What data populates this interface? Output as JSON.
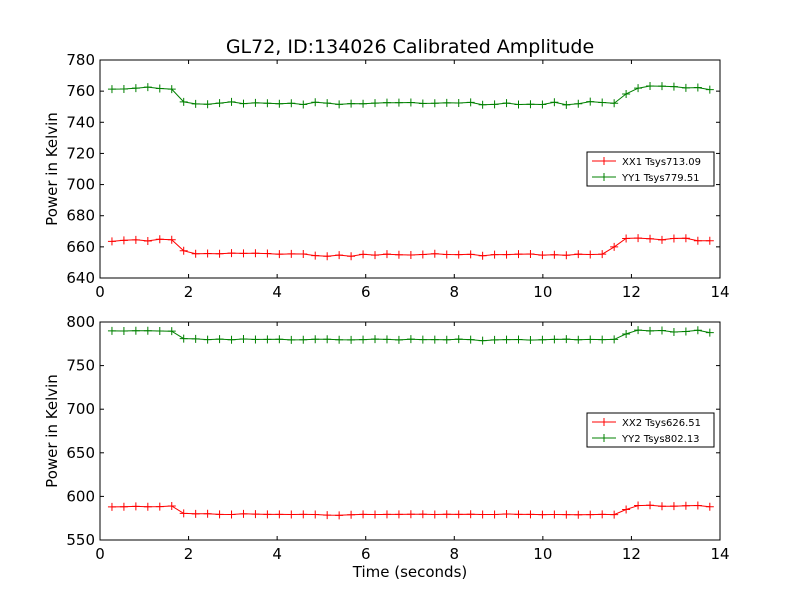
{
  "chart_data": [
    {
      "type": "line",
      "title": "GL72, ID:134026 Calibrated Amplitude",
      "xlabel": "",
      "ylabel": "Power in Kelvin",
      "xlim": [
        0,
        14
      ],
      "ylim": [
        640,
        780
      ],
      "xticks": [
        0,
        2,
        4,
        6,
        8,
        10,
        12,
        14
      ],
      "yticks": [
        640,
        660,
        680,
        700,
        720,
        740,
        760,
        780
      ],
      "grid": false,
      "legend_position": "center-right",
      "x": [
        0.27,
        0.54,
        0.81,
        1.08,
        1.35,
        1.62,
        1.89,
        2.16,
        2.43,
        2.7,
        2.97,
        3.24,
        3.51,
        3.78,
        4.05,
        4.32,
        4.59,
        4.86,
        5.13,
        5.4,
        5.67,
        5.94,
        6.21,
        6.48,
        6.75,
        7.02,
        7.29,
        7.56,
        7.83,
        8.1,
        8.37,
        8.64,
        8.91,
        9.18,
        9.45,
        9.72,
        9.99,
        10.26,
        10.53,
        10.8,
        11.07,
        11.34,
        11.61,
        11.88,
        12.15,
        12.42,
        12.69,
        12.96,
        13.23,
        13.5,
        13.77
      ],
      "series": [
        {
          "name": "XX1 Tsys713.09",
          "color": "#ff0000",
          "values": [
            663.5,
            664.2,
            664.5,
            663.8,
            664.9,
            664.6,
            657.5,
            655.6,
            655.7,
            655.6,
            656.0,
            655.8,
            655.9,
            655.7,
            655.3,
            655.5,
            655.4,
            654.4,
            654.0,
            654.7,
            654.0,
            655.2,
            654.7,
            655.3,
            654.9,
            654.8,
            655.1,
            655.6,
            655.1,
            655.0,
            655.2,
            654.3,
            655.0,
            655.0,
            655.3,
            655.4,
            654.7,
            654.9,
            654.6,
            655.3,
            655.1,
            655.3,
            660.0,
            665.4,
            665.6,
            665.2,
            664.5,
            665.4,
            665.5,
            663.9,
            663.9
          ]
        },
        {
          "name": "YY1 Tsys779.51",
          "color": "#008000",
          "values": [
            761.3,
            761.4,
            761.9,
            762.6,
            761.7,
            761.3,
            753.1,
            751.8,
            751.6,
            752.3,
            753.1,
            752.0,
            752.5,
            752.2,
            751.9,
            752.2,
            751.4,
            752.9,
            752.3,
            751.5,
            752.0,
            751.9,
            752.3,
            752.6,
            752.6,
            752.7,
            752.1,
            752.2,
            752.5,
            752.4,
            752.8,
            751.3,
            751.5,
            752.3,
            751.4,
            751.6,
            751.4,
            752.9,
            751.2,
            751.9,
            753.3,
            752.7,
            752.2,
            758.2,
            761.9,
            763.3,
            763.2,
            762.9,
            762.1,
            762.3,
            761.0
          ]
        }
      ],
      "legend": [
        "XX1 Tsys713.09",
        "YY1 Tsys779.51"
      ]
    },
    {
      "type": "line",
      "title": "",
      "xlabel": "Time (seconds)",
      "ylabel": "Power in Kelvin",
      "xlim": [
        0,
        14
      ],
      "ylim": [
        550,
        800
      ],
      "xticks": [
        0,
        2,
        4,
        6,
        8,
        10,
        12,
        14
      ],
      "yticks": [
        550,
        600,
        650,
        700,
        750,
        800
      ],
      "grid": false,
      "legend_position": "center-right",
      "x": [
        0.27,
        0.54,
        0.81,
        1.08,
        1.35,
        1.62,
        1.89,
        2.16,
        2.43,
        2.7,
        2.97,
        3.24,
        3.51,
        3.78,
        4.05,
        4.32,
        4.59,
        4.86,
        5.13,
        5.4,
        5.67,
        5.94,
        6.21,
        6.48,
        6.75,
        7.02,
        7.29,
        7.56,
        7.83,
        8.1,
        8.37,
        8.64,
        8.91,
        9.18,
        9.45,
        9.72,
        9.99,
        10.26,
        10.53,
        10.8,
        11.07,
        11.34,
        11.61,
        11.88,
        12.15,
        12.42,
        12.69,
        12.96,
        13.23,
        13.5,
        13.77
      ],
      "series": [
        {
          "name": "XX2 Tsys626.51",
          "color": "#ff0000",
          "values": [
            588.0,
            588.2,
            588.5,
            588.1,
            588.3,
            589.0,
            580.5,
            580.0,
            580.1,
            579.4,
            579.3,
            580.0,
            579.7,
            579.4,
            579.4,
            579.3,
            579.4,
            579.2,
            578.5,
            578.3,
            579.0,
            579.4,
            579.3,
            579.4,
            579.4,
            579.5,
            579.5,
            579.2,
            579.5,
            579.4,
            579.5,
            579.2,
            579.3,
            579.8,
            579.4,
            579.4,
            579.1,
            579.2,
            579.1,
            579.0,
            579.1,
            579.4,
            579.1,
            585.0,
            589.5,
            589.8,
            588.7,
            588.8,
            589.3,
            589.6,
            588.2
          ]
        },
        {
          "name": "YY2 Tsys802.13",
          "color": "#008000",
          "values": [
            789.8,
            789.7,
            790.0,
            790.0,
            789.7,
            789.5,
            781.0,
            780.6,
            779.8,
            780.4,
            779.7,
            780.5,
            780.0,
            780.1,
            780.2,
            779.5,
            779.6,
            780.2,
            780.2,
            779.6,
            779.5,
            779.8,
            780.4,
            780.1,
            779.5,
            780.3,
            779.8,
            779.8,
            779.7,
            780.3,
            779.8,
            778.6,
            779.5,
            779.8,
            779.9,
            779.3,
            779.6,
            780.1,
            780.3,
            779.6,
            780.0,
            779.8,
            780.1,
            786.3,
            790.7,
            789.8,
            790.3,
            788.5,
            789.1,
            790.5,
            787.8
          ]
        }
      ],
      "legend": [
        "XX2 Tsys626.51",
        "YY2 Tsys802.13"
      ]
    }
  ]
}
